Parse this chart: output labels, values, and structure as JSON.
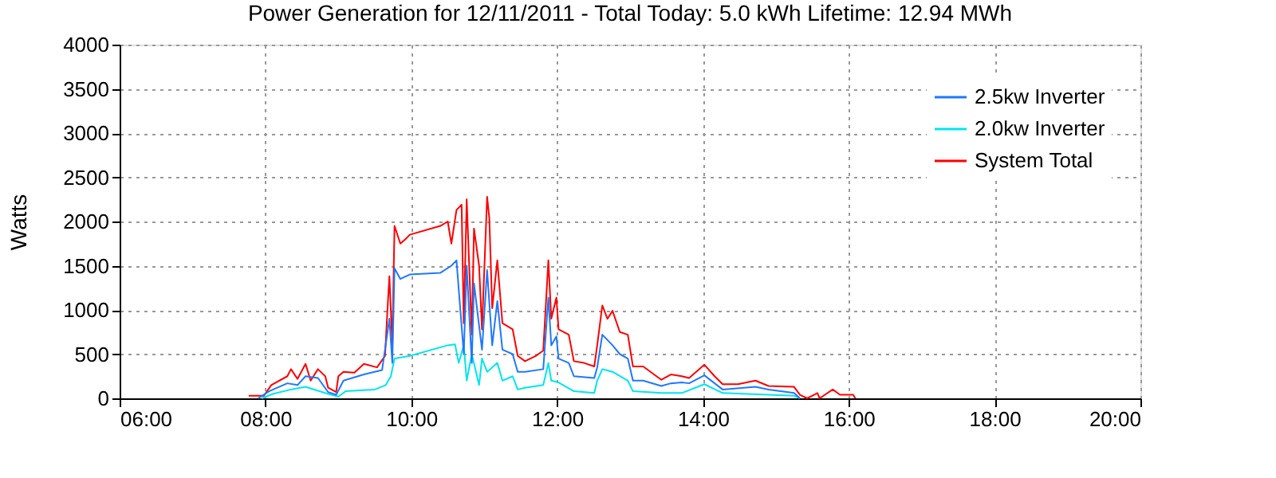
{
  "chart_data": {
    "type": "line",
    "title": "Power Generation for 12/11/2011 - Total Today: 5.0 kWh   Lifetime: 12.94 MWh",
    "ylabel": "Watts",
    "xlim": [
      6,
      20
    ],
    "xticks": [
      {
        "value": 6,
        "label": "06:00"
      },
      {
        "value": 8,
        "label": "08:00"
      },
      {
        "value": 10,
        "label": "10:00"
      },
      {
        "value": 12,
        "label": "12:00"
      },
      {
        "value": 14,
        "label": "14:00"
      },
      {
        "value": 16,
        "label": "16:00"
      },
      {
        "value": 18,
        "label": "18:00"
      },
      {
        "value": 20,
        "label": "20:00"
      }
    ],
    "ylim": [
      0,
      4000
    ],
    "yticks": [
      0,
      500,
      1000,
      1500,
      2000,
      2500,
      3000,
      3500,
      4000
    ],
    "grid": true,
    "legend": "top right",
    "marker": "none",
    "series": [
      {
        "name": "2.5kw Inverter",
        "color": "#1e78ff",
        "x": [
          7.9,
          8.05,
          8.3,
          8.44,
          8.55,
          8.72,
          8.86,
          8.97,
          9.07,
          9.35,
          9.6,
          9.7,
          9.74,
          9.77,
          9.85,
          9.98,
          10.4,
          10.55,
          10.62,
          10.72,
          10.76,
          10.83,
          10.86,
          10.97,
          11.04,
          11.11,
          11.18,
          11.25,
          11.39,
          11.46,
          11.56,
          11.81,
          11.88,
          11.92,
          11.99,
          12.02,
          12.16,
          12.23,
          12.51,
          12.55,
          12.62,
          12.76,
          12.86,
          12.97,
          13.04,
          13.18,
          13.43,
          13.56,
          13.71,
          13.81,
          14.02,
          14.16,
          14.27,
          14.72,
          14.9,
          15.25,
          15.33
        ],
        "values": [
          0,
          80,
          170,
          150,
          250,
          230,
          70,
          40,
          200,
          270,
          320,
          900,
          400,
          1470,
          1350,
          1400,
          1420,
          1500,
          1560,
          500,
          1500,
          400,
          1300,
          550,
          1450,
          600,
          1100,
          550,
          500,
          300,
          300,
          330,
          1140,
          600,
          700,
          450,
          400,
          250,
          230,
          350,
          720,
          600,
          500,
          450,
          200,
          200,
          140,
          170,
          180,
          170,
          260,
          170,
          100,
          130,
          100,
          60,
          0
        ]
      },
      {
        "name": "2.0kw Inverter",
        "color": "#00e5ee",
        "x": [
          7.95,
          8.1,
          8.35,
          8.55,
          8.86,
          9.0,
          9.1,
          9.5,
          9.65,
          9.72,
          9.77,
          9.98,
          10.5,
          10.6,
          10.65,
          10.72,
          10.76,
          10.83,
          10.93,
          10.97,
          11.04,
          11.18,
          11.25,
          11.39,
          11.46,
          11.56,
          11.81,
          11.88,
          11.92,
          12.02,
          12.23,
          12.51,
          12.55,
          12.62,
          12.76,
          12.97,
          13.04,
          13.43,
          13.71,
          14.02,
          14.27,
          15.25,
          15.33
        ],
        "values": [
          0,
          50,
          100,
          130,
          50,
          20,
          80,
          100,
          150,
          250,
          450,
          480,
          600,
          610,
          400,
          600,
          200,
          500,
          150,
          450,
          300,
          400,
          200,
          250,
          100,
          120,
          150,
          400,
          200,
          180,
          80,
          60,
          200,
          330,
          300,
          200,
          80,
          60,
          60,
          160,
          60,
          30,
          0
        ]
      },
      {
        "name": "System Total",
        "color": "#ff0000",
        "x": [
          7.77,
          7.98,
          8.08,
          8.3,
          8.35,
          8.44,
          8.55,
          8.62,
          8.72,
          8.82,
          8.86,
          8.97,
          9.0,
          9.07,
          9.22,
          9.35,
          9.53,
          9.64,
          9.67,
          9.7,
          9.74,
          9.77,
          9.85,
          9.92,
          9.98,
          10.4,
          10.5,
          10.55,
          10.62,
          10.69,
          10.72,
          10.76,
          10.83,
          10.86,
          10.93,
          10.97,
          11.04,
          11.07,
          11.11,
          11.18,
          11.25,
          11.39,
          11.46,
          11.56,
          11.71,
          11.81,
          11.88,
          11.92,
          11.99,
          12.02,
          12.16,
          12.23,
          12.37,
          12.51,
          12.55,
          12.62,
          12.69,
          12.76,
          12.86,
          12.97,
          13.04,
          13.18,
          13.43,
          13.56,
          13.71,
          13.81,
          14.02,
          14.16,
          14.27,
          14.48,
          14.72,
          14.9,
          15.25,
          15.33,
          15.43,
          15.57,
          15.6,
          15.78,
          15.88,
          16.06,
          16.09
        ],
        "values": [
          30,
          30,
          150,
          250,
          330,
          220,
          390,
          200,
          330,
          250,
          120,
          70,
          250,
          300,
          290,
          390,
          350,
          480,
          950,
          1380,
          600,
          1950,
          1750,
          1800,
          1850,
          1950,
          2000,
          1750,
          2130,
          2190,
          850,
          2250,
          720,
          1920,
          1500,
          780,
          2280,
          2040,
          1020,
          1560,
          850,
          780,
          480,
          420,
          480,
          540,
          1560,
          900,
          1140,
          780,
          720,
          420,
          400,
          360,
          600,
          1050,
          900,
          990,
          750,
          720,
          360,
          360,
          210,
          270,
          250,
          230,
          380,
          250,
          160,
          160,
          200,
          140,
          130,
          40,
          0,
          60,
          0,
          100,
          40,
          40,
          0
        ]
      }
    ]
  }
}
